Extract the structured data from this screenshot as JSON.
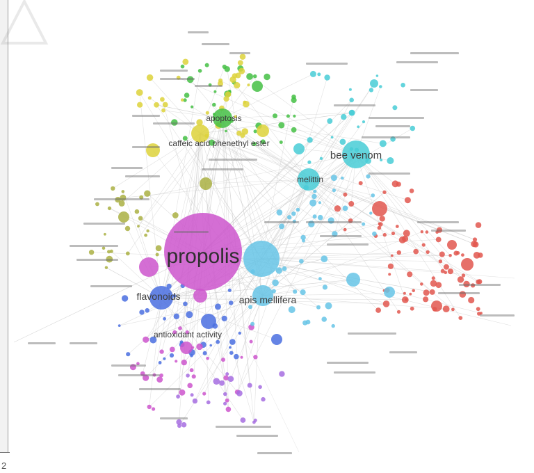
{
  "frame": {
    "corner_mark": "2"
  },
  "network": {
    "colors": {
      "magenta": "#cc55cc",
      "sky": "#66c4e6",
      "cyan": "#48cdd6",
      "green": "#44c044",
      "yellow": "#ddd23a",
      "olive": "#aab043",
      "blue": "#4a6fe0",
      "red": "#e2574f",
      "purple": "#a66de0",
      "edge": "#c8c8c8"
    },
    "labels": {
      "propolis": "propolis",
      "bee_venom": "bee venom",
      "apis_mellifera": "apis mellifera",
      "flavonoids": "flavonoids",
      "apoptosis": "apoptosis",
      "caffeic_acid_phenethyl_ester": "caffeic acid phenethyl ester",
      "melittin": "melittin",
      "antioxidant_activity": "antioxidant activity"
    }
  }
}
